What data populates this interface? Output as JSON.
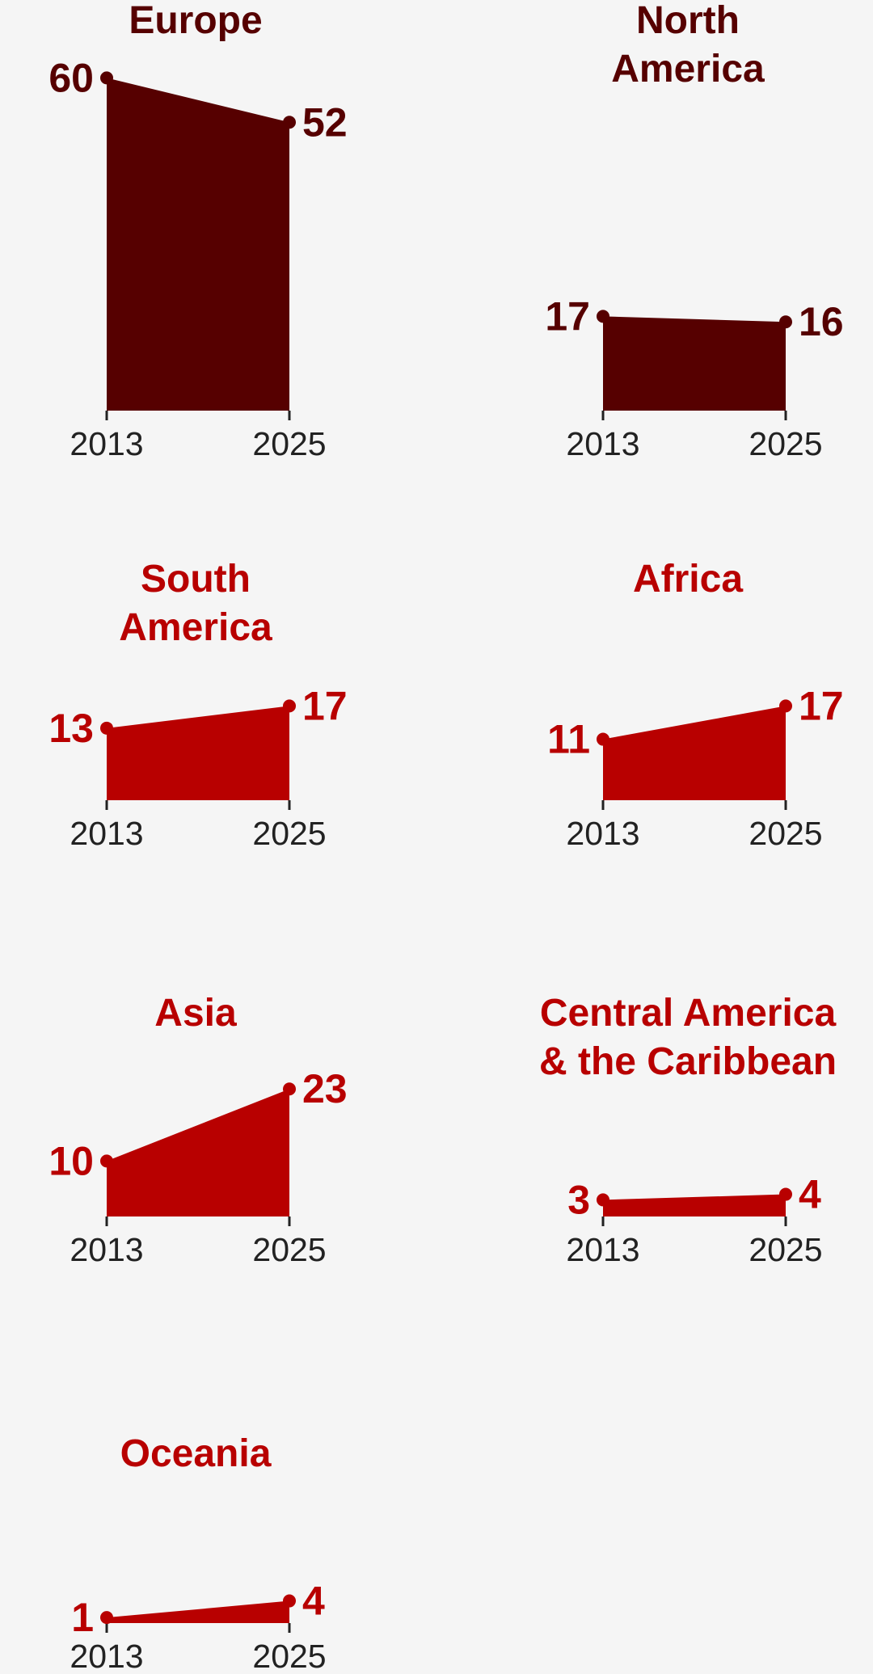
{
  "chart_data": [
    {
      "type": "area",
      "title_lines": [
        "Europe"
      ],
      "categories": [
        "2013",
        "2025"
      ],
      "values": [
        60,
        52
      ],
      "value_labels": [
        "60",
        "52"
      ],
      "color": "#560000"
    },
    {
      "type": "area",
      "title_lines": [
        "North",
        "America"
      ],
      "categories": [
        "2013",
        "2025"
      ],
      "values": [
        17,
        16
      ],
      "value_labels": [
        "17",
        "16"
      ],
      "color": "#560000"
    },
    {
      "type": "area",
      "title_lines": [
        "South",
        "America"
      ],
      "categories": [
        "2013",
        "2025"
      ],
      "values": [
        13,
        17
      ],
      "value_labels": [
        "13",
        "17"
      ],
      "color": "#b80000"
    },
    {
      "type": "area",
      "title_lines": [
        "Africa"
      ],
      "categories": [
        "2013",
        "2025"
      ],
      "values": [
        11,
        17
      ],
      "value_labels": [
        "11",
        "17"
      ],
      "color": "#b80000"
    },
    {
      "type": "area",
      "title_lines": [
        "Asia"
      ],
      "categories": [
        "2013",
        "2025"
      ],
      "values": [
        10,
        23
      ],
      "value_labels": [
        "10",
        "23"
      ],
      "color": "#b80000"
    },
    {
      "type": "area",
      "title_lines": [
        "Central America",
        "& the Caribbean"
      ],
      "categories": [
        "2013",
        "2025"
      ],
      "values": [
        3,
        4
      ],
      "value_labels": [
        "3",
        "4"
      ],
      "color": "#b80000"
    },
    {
      "type": "area",
      "title_lines": [
        "Oceania"
      ],
      "categories": [
        "2013",
        "2025"
      ],
      "values": [
        1,
        4
      ],
      "value_labels": [
        "1",
        "4"
      ],
      "color": "#b80000"
    }
  ],
  "colors": {
    "dark": "#560000",
    "accent": "#b80000",
    "axis": "#222222",
    "background": "#f5f5f5"
  }
}
